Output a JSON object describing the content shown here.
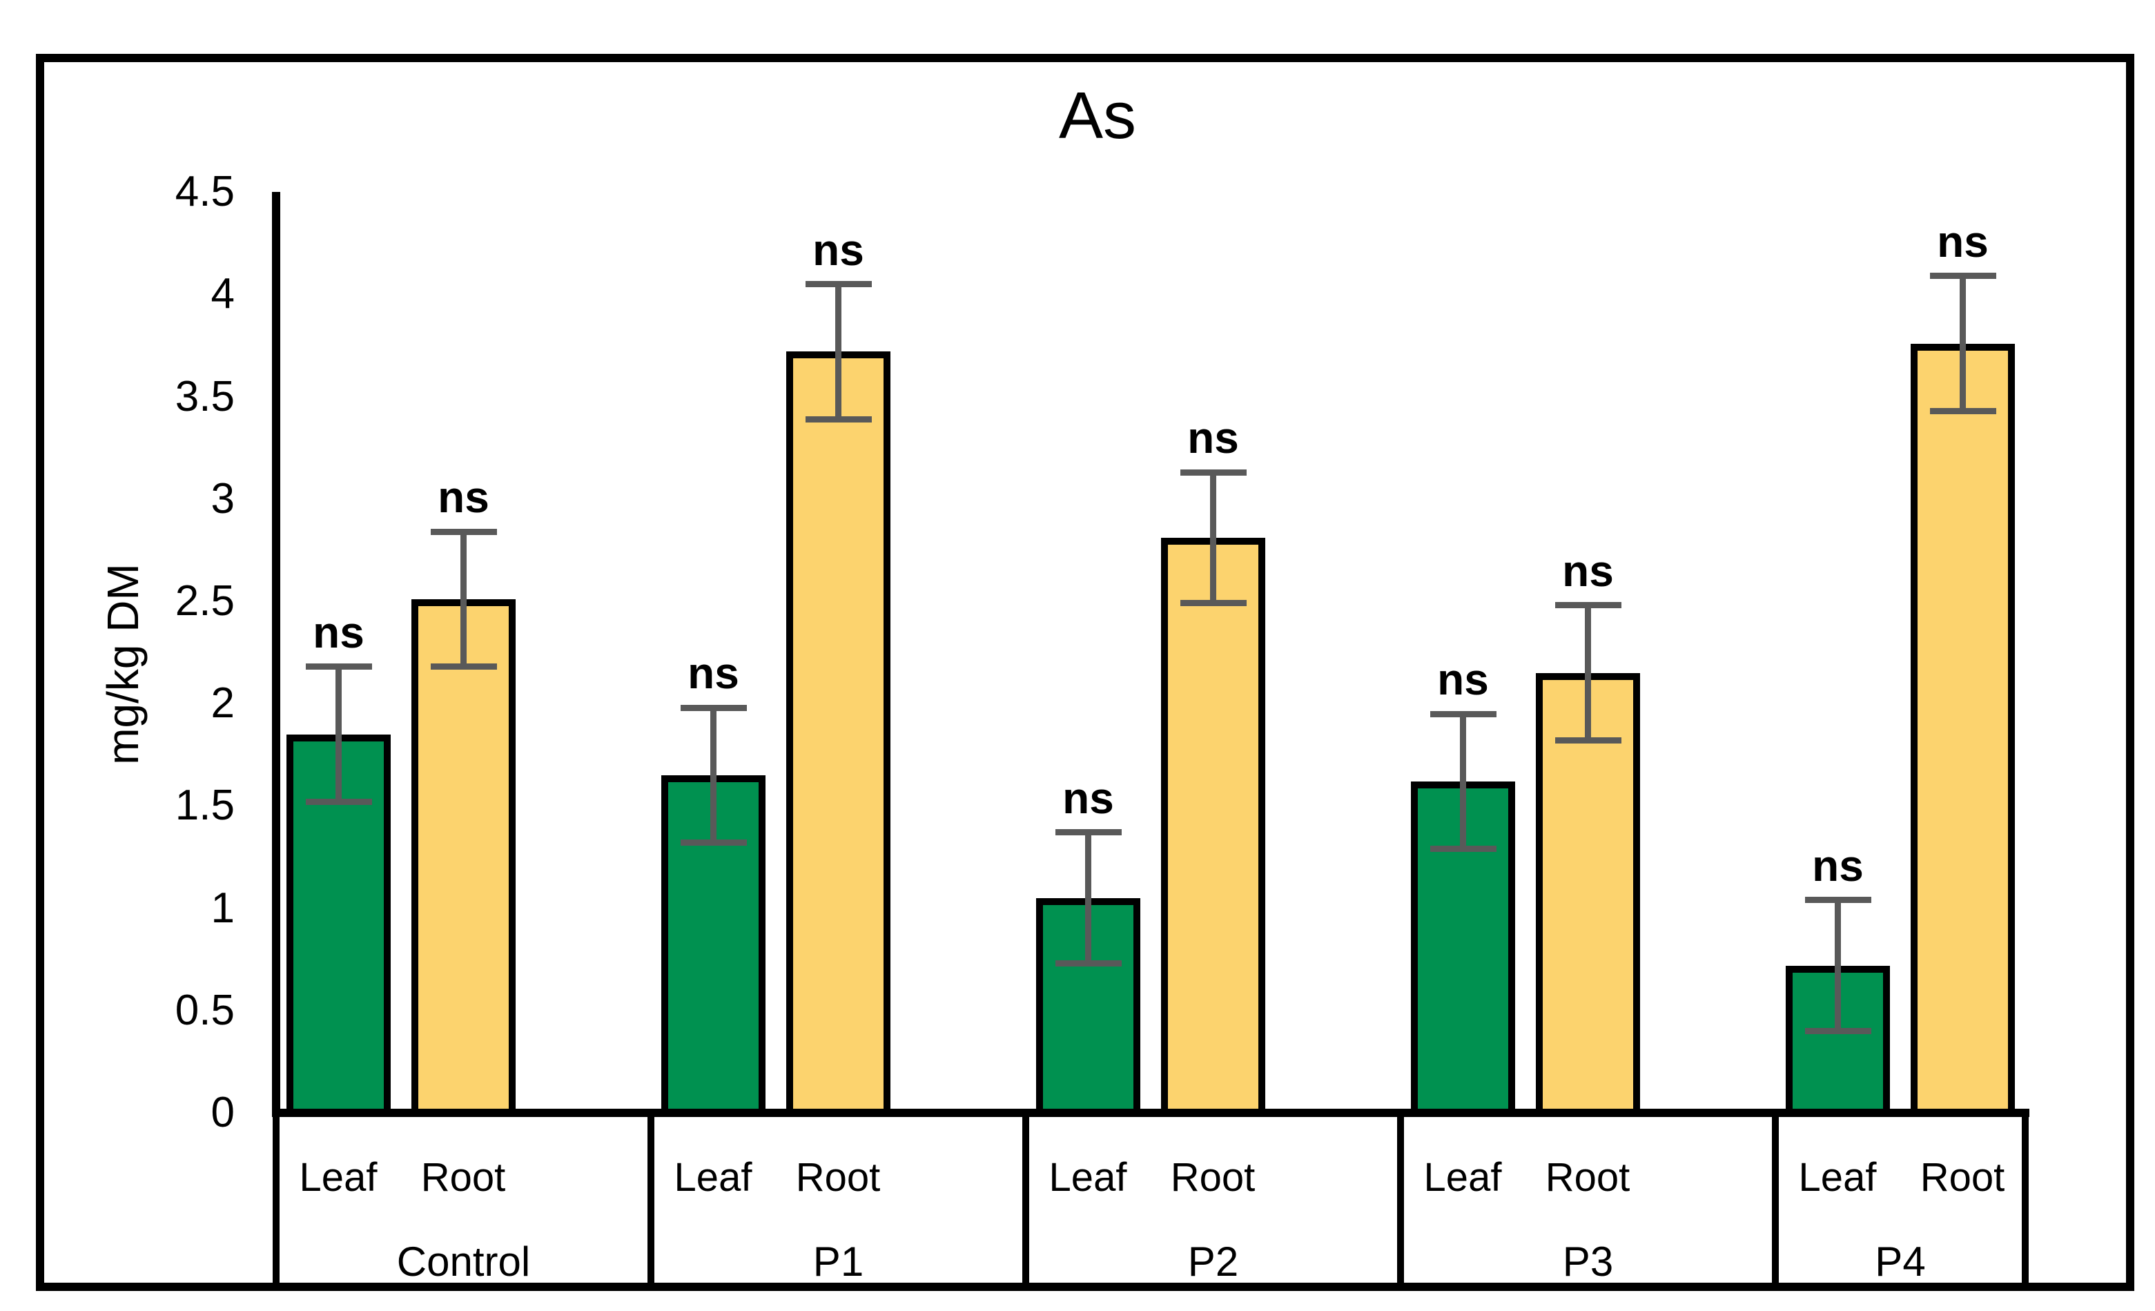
{
  "figure": {
    "title": "As"
  },
  "y_axis": {
    "title": "mg/kg DM",
    "tick_labels": [
      "4.5",
      "4",
      "3.5",
      "3",
      "2.5",
      "2",
      "1.5",
      "1",
      "0.5",
      "0"
    ]
  },
  "x_axis": {
    "series_row_labels": [
      "Leaf",
      "Root"
    ],
    "group_labels": [
      "Control",
      "P1",
      "P2",
      "P3",
      "P4"
    ]
  },
  "colors": {
    "leaf_bar": "#009150",
    "root_bar": "#FCD36E",
    "bar_border": "#000000",
    "error_bar": "#595959",
    "axis_line": "#000000",
    "background": "#FFFFFF"
  },
  "chart_data": {
    "type": "bar",
    "title": "As",
    "xlabel": "",
    "ylabel": "mg/kg DM",
    "ylim": [
      0,
      4.5
    ],
    "ytick_step": 0.5,
    "grid": false,
    "legend": false,
    "categories": [
      "Control",
      "P1",
      "P2",
      "P3",
      "P4"
    ],
    "series": [
      {
        "name": "Leaf",
        "color": "#009150",
        "values": [
          1.85,
          1.65,
          1.05,
          1.62,
          0.72
        ],
        "errors": [
          0.33,
          0.33,
          0.32,
          0.33,
          0.32
        ],
        "sig": [
          "ns",
          "ns",
          "ns",
          "ns",
          "ns"
        ]
      },
      {
        "name": "Root",
        "color": "#FCD36E",
        "values": [
          2.51,
          3.72,
          2.81,
          2.15,
          3.76
        ],
        "errors": [
          0.33,
          0.33,
          0.32,
          0.33,
          0.33
        ],
        "sig": [
          "ns",
          "ns",
          "ns",
          "ns",
          "ns"
        ]
      }
    ]
  }
}
